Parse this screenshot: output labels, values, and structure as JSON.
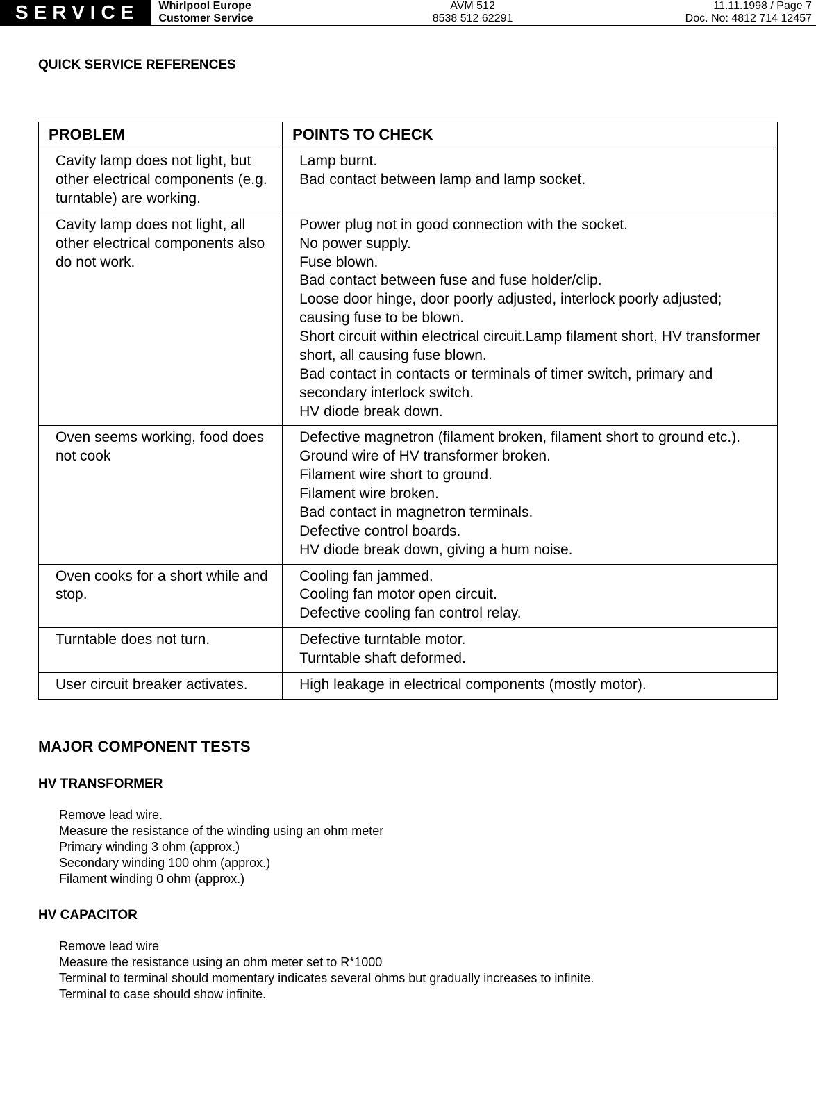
{
  "header": {
    "badge": "SERVICE",
    "company_line1": "Whirlpool Europe",
    "company_line2": "Customer Service",
    "model_line1": "AVM 512",
    "model_line2": "8538 512 62291",
    "date_page": "11.11.1998 / Page 7",
    "doc_no": "Doc. No: 4812 714 12457"
  },
  "section_title": "QUICK SERVICE REFERENCES",
  "table": {
    "header_problem": "PROBLEM",
    "header_points": "POINTS TO CHECK",
    "rows": [
      {
        "problem": "Cavity lamp does not light, but other electrical components (e.g. turntable) are working.",
        "points": "Lamp burnt.\nBad contact between lamp and lamp socket."
      },
      {
        "problem": "Cavity lamp does not light, all other electrical components also do not work.",
        "points": "Power plug not in good connection with the socket.\nNo power supply.\nFuse blown.\nBad contact between fuse and fuse holder/clip.\nLoose door hinge, door poorly adjusted, interlock poorly adjusted; causing fuse to be blown.\nShort circuit within electrical circuit.Lamp filament short, HV transformer short, all causing fuse blown.\nBad contact in contacts or terminals of timer switch, primary and secondary interlock switch.\nHV diode break down."
      },
      {
        "problem": "Oven seems working, food does not cook",
        "points": "Defective magnetron (filament broken, filament short to ground etc.).\nGround wire of HV transformer broken.\nFilament wire short to ground.\nFilament wire broken.\nBad contact in magnetron terminals.\nDefective control boards.\nHV diode break down, giving a hum noise."
      },
      {
        "problem": "Oven cooks for a short while and stop.",
        "points": "Cooling fan jammed.\nCooling fan motor open circuit.\nDefective cooling fan control relay."
      },
      {
        "problem": "Turntable does not turn.",
        "points": "Defective turntable motor.\nTurntable shaft deformed."
      },
      {
        "problem": "User circuit breaker activates.",
        "points": "High leakage in electrical components (mostly motor)."
      }
    ]
  },
  "major_title": "MAJOR COMPONENT TESTS",
  "tests": [
    {
      "title": "HV TRANSFORMER",
      "body": "Remove lead wire.\nMeasure the resistance of the winding using an ohm meter\nPrimary winding 3 ohm (approx.)\nSecondary winding 100 ohm (approx.)\nFilament winding 0 ohm (approx.)"
    },
    {
      "title": "HV CAPACITOR",
      "body": "Remove lead wire\nMeasure the resistance using an ohm meter set to R*1000\nTerminal to terminal should momentary indicates several ohms but gradually increases to infinite.\nTerminal to case should show infinite."
    }
  ]
}
